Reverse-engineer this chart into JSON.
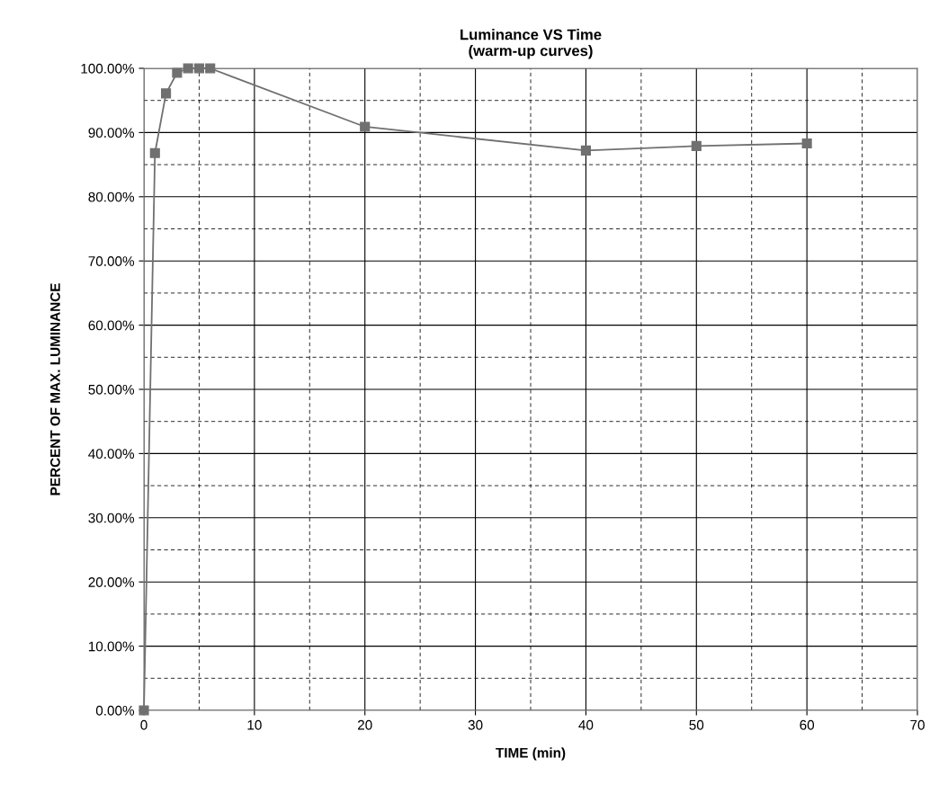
{
  "chart_data": {
    "type": "line",
    "title": "Luminance VS Time\n(warm-up curves)",
    "xlabel": "TIME (min)",
    "ylabel": "PERCENT OF MAX. LUMINANCE",
    "x": [
      0,
      1,
      2,
      3,
      4,
      5,
      6,
      20,
      40,
      50,
      60
    ],
    "series": [
      {
        "color": "#707070",
        "values": [
          0,
          86.8,
          96.1,
          99.3,
          100,
          100,
          100,
          90.9,
          87.2,
          87.9,
          88.3
        ]
      }
    ],
    "xlim": [
      0,
      70
    ],
    "xticks": [
      0,
      10,
      20,
      30,
      40,
      50,
      60,
      70
    ],
    "ylim": [
      0,
      100
    ],
    "yticks": [
      {
        "value": 0,
        "label": "0.00%"
      },
      {
        "value": 10,
        "label": "10.00%"
      },
      {
        "value": 20,
        "label": "20.00%"
      },
      {
        "value": 30,
        "label": "30.00%"
      },
      {
        "value": 40,
        "label": "40.00%"
      },
      {
        "value": 50,
        "label": "50.00%"
      },
      {
        "value": 60,
        "label": "60.00%"
      },
      {
        "value": 70,
        "label": "70.00%"
      },
      {
        "value": 80,
        "label": "80.00%"
      },
      {
        "value": 90,
        "label": "90.00%"
      },
      {
        "value": 100,
        "label": "100.00%"
      }
    ],
    "grid": true,
    "marker": "square",
    "line_style": "solid",
    "legend": false
  }
}
